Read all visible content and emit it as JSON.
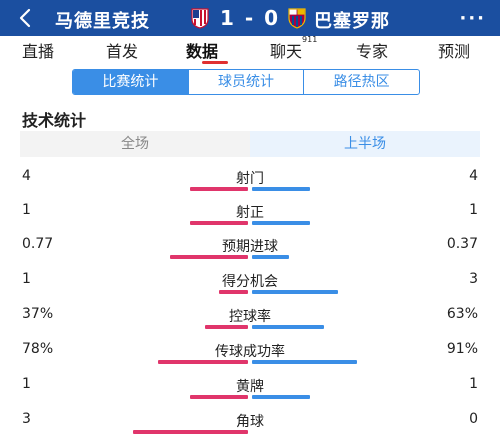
{
  "header": {
    "home_team": "马德里竞技",
    "score": "1 - 0",
    "away_team": "巴塞罗那",
    "more": "···"
  },
  "tabs": [
    {
      "label": "直播",
      "active": false
    },
    {
      "label": "首发",
      "active": false
    },
    {
      "label": "数据",
      "active": true
    },
    {
      "label": "聊天",
      "badge": "911",
      "active": false
    },
    {
      "label": "专家",
      "active": false
    },
    {
      "label": "预测",
      "active": false
    }
  ],
  "segments": [
    {
      "label": "比赛统计",
      "active": true
    },
    {
      "label": "球员统计",
      "active": false
    },
    {
      "label": "路径热区",
      "active": false
    }
  ],
  "section_title": "技术统计",
  "period": [
    {
      "label": "全场",
      "active": false
    },
    {
      "label": "上半场",
      "active": true
    }
  ],
  "colors": {
    "header_bg": "#1b4fa0",
    "home_bar": "#e0356b",
    "away_bar": "#3a8ee6",
    "accent": "#3a8ee6",
    "tab_indicator": "#e03030"
  },
  "stats": [
    {
      "label": "射门",
      "home": "4",
      "away": "4",
      "home_share": 0.5
    },
    {
      "label": "射正",
      "home": "1",
      "away": "1",
      "home_share": 0.5
    },
    {
      "label": "预期进球",
      "home": "0.77",
      "away": "0.37",
      "home_share": 0.675
    },
    {
      "label": "得分机会",
      "home": "1",
      "away": "3",
      "home_share": 0.25
    },
    {
      "label": "控球率",
      "home": "37%",
      "away": "63%",
      "home_share": 0.37
    },
    {
      "label": "传球成功率",
      "home": "78%",
      "away": "91%",
      "home_share": 0.78,
      "away_share": 0.91
    },
    {
      "label": "黄牌",
      "home": "1",
      "away": "1",
      "home_share": 0.5
    },
    {
      "label": "角球",
      "home": "3",
      "away": "0",
      "home_share": 1.0
    }
  ]
}
